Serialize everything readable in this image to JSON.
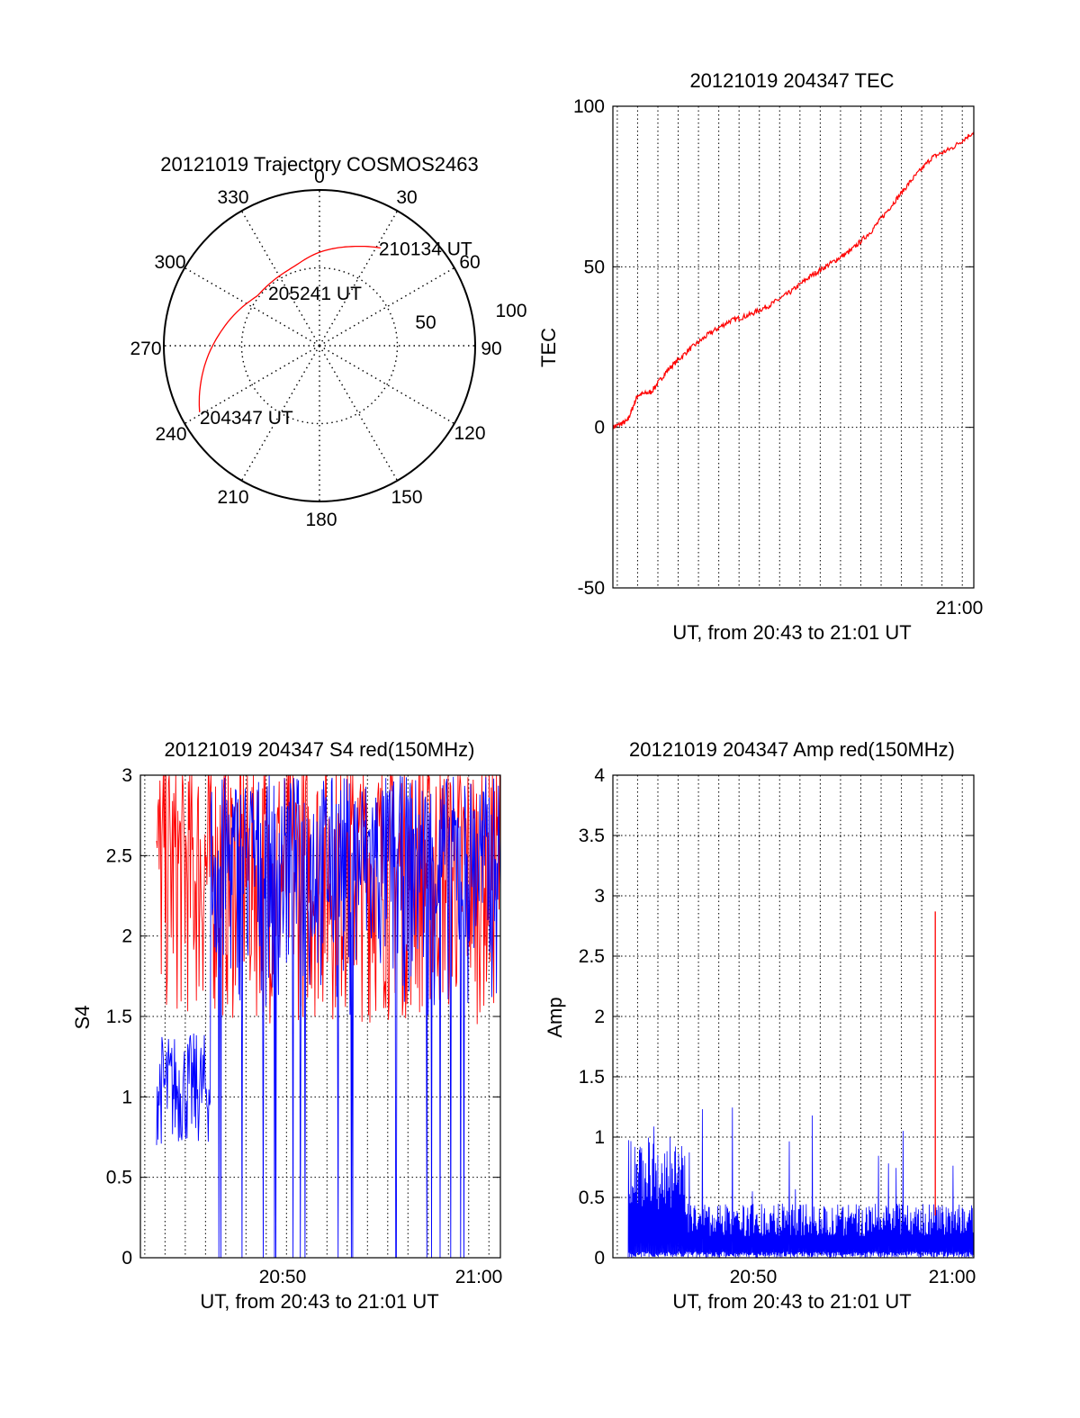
{
  "chart_data": [
    {
      "type": "polar",
      "title": "20121019 Trajectory COSMOS2463",
      "azimuth_labels": [
        "0",
        "30",
        "60",
        "90",
        "120",
        "150",
        "180",
        "210",
        "240",
        "270",
        "300",
        "330"
      ],
      "radial_labels": [
        "50",
        "100"
      ],
      "rlim": [
        0,
        100
      ],
      "grid": true,
      "series": [
        {
          "color": "#ff0000",
          "points": [
            {
              "az": 241,
              "r": 88,
              "label": "204347 UT"
            },
            {
              "az": 260,
              "r": 75
            },
            {
              "az": 280,
              "r": 63
            },
            {
              "az": 303,
              "r": 53
            },
            {
              "az": 315,
              "r": 51,
              "label": "205241 UT"
            },
            {
              "az": 340,
              "r": 53
            },
            {
              "az": 0,
              "r": 60
            },
            {
              "az": 18,
              "r": 67
            },
            {
              "az": 32,
              "r": 74,
              "label": "210134 UT"
            }
          ]
        }
      ]
    },
    {
      "type": "line",
      "title": "20121019 204347 TEC",
      "ylabel": "TEC",
      "xlabel": "UT, from 20:43 to 21:01 UT",
      "xlim": [
        "20:43:47",
        "21:01:34"
      ],
      "ylim": [
        -50,
        100
      ],
      "yticks": [
        "100",
        "50",
        "0",
        "-50"
      ],
      "xticks": [
        "21:00"
      ],
      "grid": true,
      "series": [
        {
          "color": "#ff0000",
          "x": [
            "20:43:47",
            "20:44:30",
            "20:45:00",
            "20:45:40",
            "20:46:30",
            "20:47:30",
            "20:48:30",
            "20:49:30",
            "20:50:30",
            "20:51:30",
            "20:52:30",
            "20:53:30",
            "20:54:30",
            "20:55:30",
            "20:56:30",
            "20:57:30",
            "20:58:30",
            "20:59:30",
            "21:00:30",
            "21:01:34"
          ],
          "y": [
            0,
            2,
            10,
            11,
            18,
            24,
            29,
            33,
            35,
            38,
            42,
            47,
            51,
            55,
            61,
            69,
            77,
            84,
            87,
            92
          ]
        }
      ]
    },
    {
      "type": "line",
      "title": "20121019 204347 S4 red(150MHz)",
      "ylabel": "S4",
      "xlabel": "UT, from 20:43 to 21:01 UT",
      "xlim": [
        "20:43:47",
        "21:01:34"
      ],
      "ylim": [
        0,
        3
      ],
      "yticks": [
        "3",
        "2.5",
        "2",
        "1.5",
        "1",
        "0.5",
        "0"
      ],
      "xticks": [
        "20:50",
        "21:00"
      ],
      "grid": true,
      "series": [
        {
          "color": "#ff0000",
          "band": [
            1.3,
            3.0
          ],
          "x_start": "20:43:47",
          "x_end": "21:01:34"
        },
        {
          "color": "#0000ff",
          "band_early": [
            0.7,
            1.4
          ],
          "band_late": [
            1.5,
            3.0
          ],
          "x_start": "20:43:47",
          "x_end": "21:01:34"
        }
      ]
    },
    {
      "type": "line",
      "title": "20121019 204347 Amp red(150MHz)",
      "ylabel": "Amp",
      "xlabel": "UT, from 20:43 to 21:01 UT",
      "xlim": [
        "20:43:47",
        "21:01:34"
      ],
      "ylim": [
        0,
        4
      ],
      "yticks": [
        "4",
        "3.5",
        "3",
        "2.5",
        "2",
        "1.5",
        "1",
        "0.5",
        "0"
      ],
      "xticks": [
        "20:50",
        "21:00"
      ],
      "grid": true,
      "series": [
        {
          "color": "#0000ff",
          "band": [
            0,
            1.3
          ],
          "x_start": "20:43:47",
          "x_end": "21:01:34"
        },
        {
          "color": "#ff0000",
          "spike_x": "20:59:40",
          "spike_y": 2.87
        }
      ]
    }
  ]
}
